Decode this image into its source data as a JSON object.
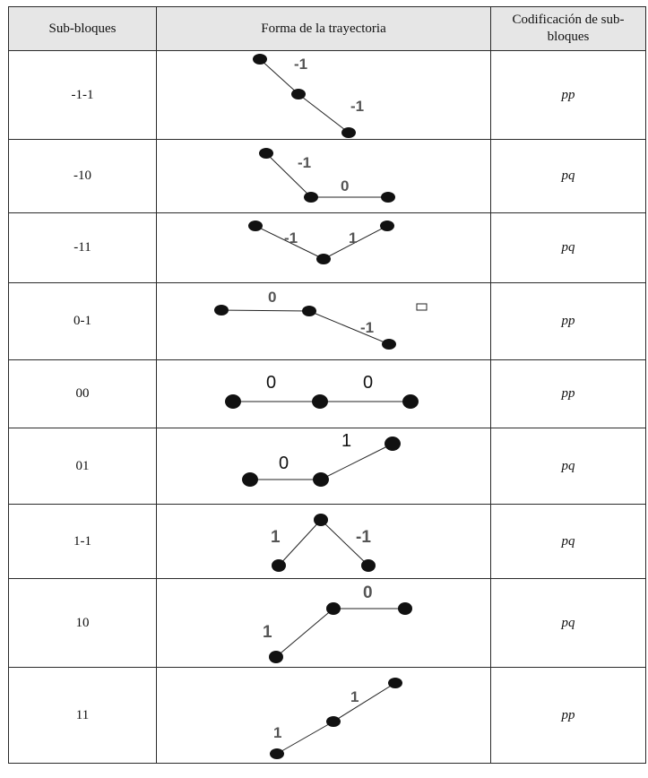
{
  "headers": {
    "col1": "Sub-bloques",
    "col2": "Forma de la trayectoria",
    "col3": "Codificación de sub-bloques"
  },
  "rows": [
    {
      "sub": "-1-1",
      "code": "pp",
      "labels": [
        "-1",
        "-1"
      ]
    },
    {
      "sub": "-10",
      "code": "pq",
      "labels": [
        "-1",
        "0"
      ]
    },
    {
      "sub": "-11",
      "code": "pq",
      "labels": [
        "-1",
        "1"
      ]
    },
    {
      "sub": "0-1",
      "code": "pp",
      "labels": [
        "0",
        "-1"
      ]
    },
    {
      "sub": "00",
      "code": "pp",
      "labels": [
        "0",
        "0"
      ]
    },
    {
      "sub": "01",
      "code": "pq",
      "labels": [
        "0",
        "1"
      ]
    },
    {
      "sub": "1-1",
      "code": "pq",
      "labels": [
        "1",
        "-1"
      ]
    },
    {
      "sub": "10",
      "code": "pq",
      "labels": [
        "1",
        "0"
      ]
    },
    {
      "sub": "11",
      "code": "pp",
      "labels": [
        "1",
        "1"
      ]
    }
  ]
}
